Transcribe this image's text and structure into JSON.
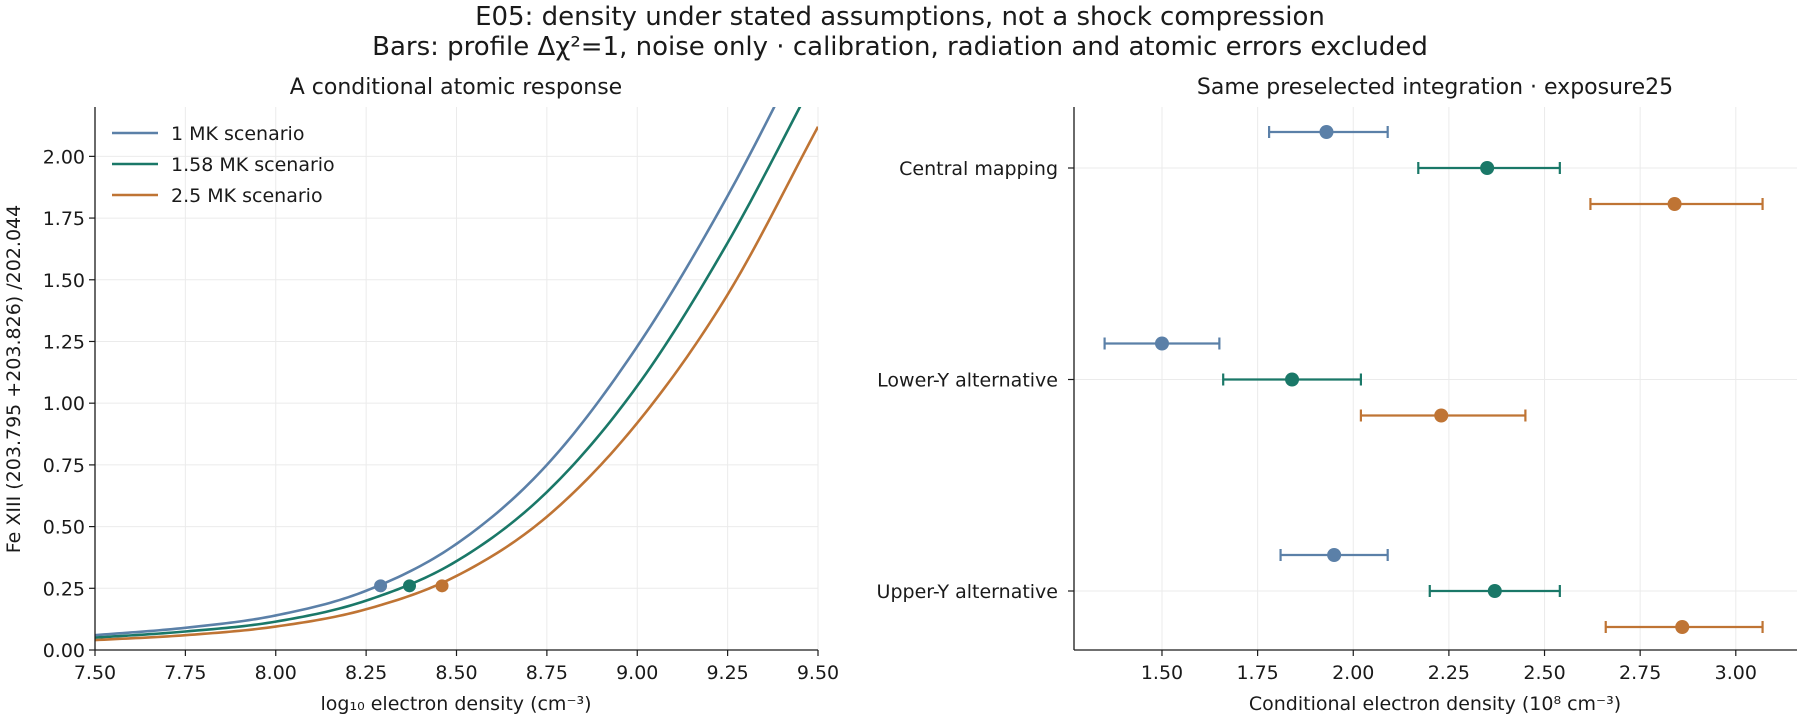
{
  "figure": {
    "title_line1": "E05: density under stated assumptions, not a shock compression",
    "title_line2": "Bars: profile Δχ²=1, noise only · calibration, radiation and atomic errors excluded"
  },
  "chart_data": [
    {
      "type": "line",
      "title": "A conditional atomic response",
      "xlabel": "log₁₀ electron density (cm⁻³)",
      "ylabel": "Fe XIII (203.795 +203.826) /202.044",
      "xlim": [
        7.5,
        9.5
      ],
      "ylim": [
        0,
        2.2
      ],
      "xticks": [
        "7.50",
        "7.75",
        "8.00",
        "8.25",
        "8.50",
        "8.75",
        "9.00",
        "9.25",
        "9.50"
      ],
      "yticks": [
        "0.00",
        "0.25",
        "0.50",
        "0.75",
        "1.00",
        "1.25",
        "1.50",
        "1.75",
        "2.00"
      ],
      "grid": true,
      "legend": "top-left",
      "x": [
        7.5,
        7.75,
        8.0,
        8.25,
        8.5,
        8.75,
        9.0,
        9.25,
        9.5
      ],
      "series": [
        {
          "name": "1 MK scenario",
          "color": "#5b80a8",
          "values": [
            0.06,
            0.09,
            0.14,
            0.24,
            0.43,
            0.75,
            1.23,
            1.84,
            2.55
          ],
          "marker": {
            "x": 8.29,
            "y": 0.26
          }
        },
        {
          "name": "1.58 MK scenario",
          "color": "#1a7868",
          "values": [
            0.05,
            0.075,
            0.115,
            0.2,
            0.36,
            0.64,
            1.07,
            1.65,
            2.34
          ],
          "marker": {
            "x": 8.37,
            "y": 0.26
          }
        },
        {
          "name": "2.5 MK scenario",
          "color": "#bf7434",
          "values": [
            0.04,
            0.06,
            0.095,
            0.165,
            0.3,
            0.54,
            0.92,
            1.44,
            2.12
          ],
          "marker": {
            "x": 8.46,
            "y": 0.26
          }
        }
      ]
    },
    {
      "type": "scatter",
      "title": "Same preselected integration · exposure25",
      "xlabel": "Conditional electron density (10⁸ cm⁻³)",
      "xlim": [
        1.27,
        3.16
      ],
      "xticks": [
        "1.50",
        "1.75",
        "2.00",
        "2.25",
        "2.50",
        "2.75",
        "3.00"
      ],
      "grid": true,
      "categories": [
        "Central mapping",
        "Lower-Y alternative",
        "Upper-Y alternative"
      ],
      "series": [
        {
          "color": "#5b80a8",
          "values": [
            1.93,
            1.5,
            1.95
          ],
          "lo": [
            1.78,
            1.35,
            1.81
          ],
          "hi": [
            2.09,
            1.65,
            2.09
          ]
        },
        {
          "color": "#1a7868",
          "values": [
            2.35,
            1.84,
            2.37
          ],
          "lo": [
            2.17,
            1.66,
            2.2
          ],
          "hi": [
            2.54,
            2.02,
            2.54
          ]
        },
        {
          "color": "#bf7434",
          "values": [
            2.84,
            2.23,
            2.86
          ],
          "lo": [
            2.62,
            2.02,
            2.66
          ],
          "hi": [
            3.07,
            2.45,
            3.07
          ]
        }
      ]
    }
  ]
}
